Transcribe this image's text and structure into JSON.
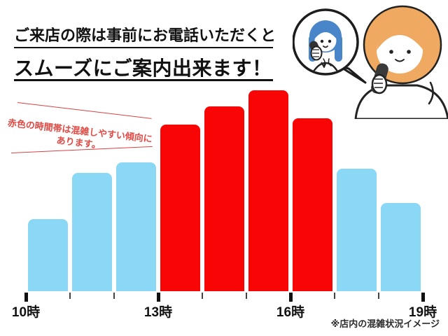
{
  "header": {
    "line1": "ご来店の際は事前にお電話いただくと",
    "line2": "スムーズにご案内出来ます！"
  },
  "annotation": {
    "line1": "赤色の時間帯は混雑しやすい傾向に",
    "line2": "あります。"
  },
  "footnote": "※店内の混雑状況イメージ",
  "colors": {
    "busy_bar": "#F80505",
    "normal_bar": "#8BD8F6",
    "annotation_text": "#E14B45",
    "annotation_line": "#D84343",
    "heading_text": "#111111",
    "staff_hair": "#4886C9",
    "customer_hair": "#F0A960"
  },
  "icons": {
    "illustration": "two-women-phone-call-illustration",
    "bubble": "speech-bubble"
  },
  "chart_data": {
    "type": "bar",
    "title": "店内の混雑状況イメージ",
    "categories": [
      "10-11時",
      "11-12時",
      "12-13時",
      "13-14時",
      "14-15時",
      "15-16時",
      "16-17時",
      "17-18時",
      "18-19時"
    ],
    "values": [
      36,
      59,
      64,
      83,
      92,
      100,
      86,
      61,
      44
    ],
    "busy": [
      false,
      false,
      false,
      true,
      true,
      true,
      true,
      false,
      false
    ],
    "x_tick_labels": [
      "10時",
      "13時",
      "16時",
      "19時"
    ],
    "major_tick_every": 3,
    "num_hour_ticks": 10,
    "ylim": [
      0,
      100
    ],
    "xlabel": "",
    "ylabel": "",
    "grid": false,
    "legend_position": "none"
  }
}
